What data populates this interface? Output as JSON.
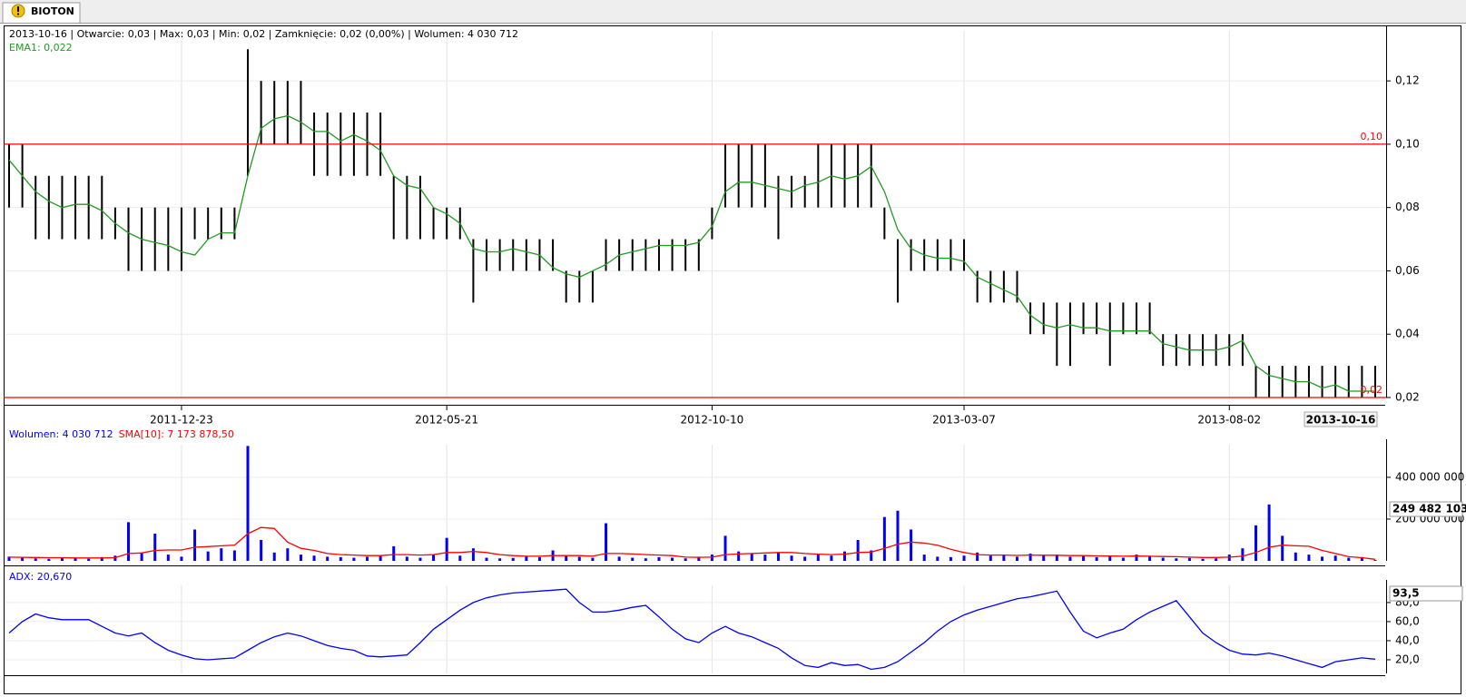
{
  "tab": "BIOTON",
  "chart_data": [
    {
      "type": "ohlc",
      "title": "2013-10-16 | Otwarcie: 0,03 | Max: 0,03 | Min: 0,02 | Zamknięcie: 0,02 (0,00%)  | Wolumen: 4 030 712",
      "categories": [
        null,
        null,
        null,
        null,
        null,
        null,
        null,
        null,
        null,
        null,
        null,
        null,
        null,
        "2011-12-23",
        null,
        null,
        null,
        null,
        null,
        null,
        null,
        null,
        null,
        null,
        null,
        null,
        null,
        null,
        null,
        null,
        null,
        null,
        null,
        "2012-05-21",
        null,
        null,
        null,
        null,
        null,
        null,
        null,
        null,
        null,
        null,
        null,
        null,
        null,
        null,
        null,
        null,
        null,
        null,
        null,
        "2012-10-10",
        null,
        null,
        null,
        null,
        null,
        null,
        null,
        null,
        null,
        null,
        null,
        null,
        null,
        null,
        null,
        null,
        null,
        null,
        "2013-03-07",
        null,
        null,
        null,
        null,
        null,
        null,
        null,
        null,
        null,
        null,
        null,
        null,
        null,
        null,
        null,
        null,
        null,
        null,
        null,
        "2013-08-02",
        null,
        null,
        null,
        null,
        null,
        null,
        null,
        null,
        null,
        null,
        "2013-10-16"
      ],
      "high": [
        0.1,
        0.1,
        0.09,
        0.09,
        0.09,
        0.09,
        0.09,
        0.09,
        0.08,
        0.08,
        0.08,
        0.08,
        0.08,
        0.08,
        0.08,
        0.08,
        0.08,
        0.08,
        0.13,
        0.12,
        0.12,
        0.12,
        0.12,
        0.11,
        0.11,
        0.11,
        0.11,
        0.11,
        0.11,
        0.09,
        0.09,
        0.09,
        0.08,
        0.08,
        0.08,
        0.07,
        0.07,
        0.07,
        0.07,
        0.07,
        0.07,
        0.07,
        0.06,
        0.06,
        0.06,
        0.07,
        0.07,
        0.07,
        0.07,
        0.07,
        0.07,
        0.07,
        0.07,
        0.08,
        0.1,
        0.1,
        0.1,
        0.1,
        0.09,
        0.09,
        0.09,
        0.1,
        0.1,
        0.1,
        0.1,
        0.1,
        0.08,
        0.07,
        0.07,
        0.07,
        0.07,
        0.07,
        0.07,
        0.06,
        0.06,
        0.06,
        0.06,
        0.05,
        0.05,
        0.05,
        0.05,
        0.05,
        0.05,
        0.05,
        0.05,
        0.05,
        0.05,
        0.04,
        0.04,
        0.04,
        0.04,
        0.04,
        0.04,
        0.04,
        0.03,
        0.03,
        0.03,
        0.03,
        0.03,
        0.03,
        0.03,
        0.03,
        0.03,
        0.03
      ],
      "low": [
        0.08,
        0.08,
        0.07,
        0.07,
        0.07,
        0.07,
        0.07,
        0.07,
        0.07,
        0.06,
        0.06,
        0.06,
        0.06,
        0.06,
        0.07,
        0.07,
        0.07,
        0.07,
        0.09,
        0.1,
        0.1,
        0.1,
        0.1,
        0.09,
        0.09,
        0.09,
        0.09,
        0.09,
        0.09,
        0.07,
        0.07,
        0.07,
        0.07,
        0.07,
        0.07,
        0.05,
        0.06,
        0.06,
        0.06,
        0.06,
        0.06,
        0.06,
        0.05,
        0.05,
        0.05,
        0.06,
        0.06,
        0.06,
        0.06,
        0.06,
        0.06,
        0.06,
        0.06,
        0.07,
        0.08,
        0.08,
        0.08,
        0.08,
        0.07,
        0.08,
        0.08,
        0.08,
        0.08,
        0.08,
        0.08,
        0.08,
        0.07,
        0.05,
        0.06,
        0.06,
        0.06,
        0.06,
        0.06,
        0.05,
        0.05,
        0.05,
        0.05,
        0.04,
        0.04,
        0.03,
        0.03,
        0.04,
        0.04,
        0.03,
        0.04,
        0.04,
        0.04,
        0.03,
        0.03,
        0.03,
        0.03,
        0.03,
        0.03,
        0.03,
        0.02,
        0.02,
        0.02,
        0.02,
        0.02,
        0.02,
        0.02,
        0.02,
        0.02,
        0.02
      ],
      "bar_color": "#000000",
      "series": [
        {
          "name": "EMA1: 0,022",
          "type": "line",
          "color": "#1f9c1f",
          "values": [
            0.095,
            0.09,
            0.085,
            0.082,
            0.08,
            0.081,
            0.081,
            0.079,
            0.075,
            0.072,
            0.07,
            0.069,
            0.068,
            0.066,
            0.065,
            0.07,
            0.072,
            0.072,
            0.09,
            0.105,
            0.108,
            0.109,
            0.107,
            0.104,
            0.104,
            0.101,
            0.103,
            0.101,
            0.098,
            0.09,
            0.087,
            0.086,
            0.08,
            0.078,
            0.075,
            0.067,
            0.066,
            0.066,
            0.067,
            0.066,
            0.065,
            0.061,
            0.059,
            0.058,
            0.06,
            0.062,
            0.065,
            0.066,
            0.067,
            0.068,
            0.068,
            0.068,
            0.069,
            0.074,
            0.085,
            0.088,
            0.088,
            0.087,
            0.086,
            0.085,
            0.087,
            0.088,
            0.09,
            0.089,
            0.09,
            0.093,
            0.085,
            0.073,
            0.067,
            0.065,
            0.064,
            0.064,
            0.063,
            0.058,
            0.056,
            0.054,
            0.052,
            0.046,
            0.043,
            0.042,
            0.043,
            0.042,
            0.042,
            0.041,
            0.041,
            0.041,
            0.041,
            0.037,
            0.036,
            0.035,
            0.035,
            0.035,
            0.036,
            0.038,
            0.03,
            0.027,
            0.026,
            0.025,
            0.025,
            0.023,
            0.024,
            0.022,
            0.022,
            0.022
          ]
        }
      ],
      "hlines": [
        {
          "value": 0.1,
          "label": "0,10"
        },
        {
          "value": 0.02,
          "label": "0,02"
        }
      ],
      "hline_color": "#ff0000",
      "ylim": [
        0.02,
        0.1358
      ],
      "yticks": [
        {
          "value": 0.02,
          "label": "0,02"
        },
        {
          "value": 0.04,
          "label": "0,04"
        },
        {
          "value": 0.06,
          "label": "0,06"
        },
        {
          "value": 0.08,
          "label": "0,08"
        },
        {
          "value": 0.1,
          "label": "0,10"
        },
        {
          "value": 0.12,
          "label": "0,12"
        }
      ],
      "grid": true
    },
    {
      "type": "bar",
      "series": [
        {
          "name": "Wolumen: 4 030 712",
          "type": "bar",
          "color": "#0000ff",
          "values": [
            20000000,
            15000000,
            12000000,
            10000000,
            14000000,
            12000000,
            10000000,
            18000000,
            25000000,
            185000000,
            40000000,
            130000000,
            30000000,
            20000000,
            150000000,
            45000000,
            60000000,
            50000000,
            550000000,
            100000000,
            40000000,
            60000000,
            30000000,
            25000000,
            20000000,
            18000000,
            15000000,
            20000000,
            25000000,
            70000000,
            20000000,
            15000000,
            30000000,
            110000000,
            25000000,
            60000000,
            15000000,
            12000000,
            14000000,
            20000000,
            18000000,
            50000000,
            25000000,
            20000000,
            15000000,
            180000000,
            20000000,
            15000000,
            12000000,
            18000000,
            15000000,
            12000000,
            20000000,
            30000000,
            120000000,
            45000000,
            35000000,
            30000000,
            40000000,
            25000000,
            20000000,
            30000000,
            25000000,
            45000000,
            100000000,
            50000000,
            210000000,
            240000000,
            150000000,
            30000000,
            20000000,
            18000000,
            25000000,
            40000000,
            25000000,
            30000000,
            20000000,
            35000000,
            25000000,
            30000000,
            20000000,
            25000000,
            18000000,
            22000000,
            15000000,
            30000000,
            20000000,
            15000000,
            12000000,
            14000000,
            10000000,
            12000000,
            30000000,
            60000000,
            170000000,
            270000000,
            120000000,
            40000000,
            30000000,
            20000000,
            25000000,
            15000000,
            18000000,
            4030712
          ]
        },
        {
          "name": "SMA[10]: 7 173 878,50",
          "type": "line",
          "color": "#ff0000",
          "values": [
            18000000,
            17000000,
            16000000,
            15000000,
            15000000,
            14000000,
            14000000,
            14000000,
            15000000,
            35000000,
            38000000,
            50000000,
            52000000,
            52000000,
            65000000,
            68000000,
            72000000,
            75000000,
            130000000,
            160000000,
            155000000,
            90000000,
            60000000,
            50000000,
            35000000,
            30000000,
            28000000,
            25000000,
            25000000,
            30000000,
            30000000,
            28000000,
            30000000,
            40000000,
            40000000,
            45000000,
            40000000,
            30000000,
            25000000,
            22000000,
            22000000,
            25000000,
            25000000,
            25000000,
            22000000,
            35000000,
            35000000,
            33000000,
            30000000,
            28000000,
            25000000,
            18000000,
            17000000,
            18000000,
            30000000,
            33000000,
            35000000,
            38000000,
            40000000,
            40000000,
            35000000,
            32000000,
            30000000,
            32000000,
            40000000,
            42000000,
            60000000,
            80000000,
            90000000,
            85000000,
            75000000,
            55000000,
            40000000,
            30000000,
            28000000,
            28000000,
            26000000,
            28000000,
            27000000,
            27000000,
            25000000,
            25000000,
            24000000,
            23000000,
            22000000,
            23000000,
            22000000,
            21000000,
            20000000,
            18000000,
            16000000,
            16000000,
            18000000,
            22000000,
            40000000,
            65000000,
            75000000,
            72000000,
            70000000,
            50000000,
            35000000,
            20000000,
            15000000,
            7173878.5
          ]
        }
      ],
      "ylim": [
        0,
        556000000
      ],
      "yticks": [
        {
          "value": 200000000,
          "label": "200 000 000"
        },
        {
          "value": 400000000,
          "label": "400 000 000"
        }
      ],
      "marker_label": "249 482 103",
      "grid": true
    },
    {
      "type": "line",
      "series": [
        {
          "name": "ADX: 20,670",
          "type": "line",
          "color": "#0000ff",
          "values": [
            48,
            60,
            68,
            64,
            62,
            62,
            62,
            55,
            48,
            45,
            48,
            38,
            30,
            25,
            21,
            20,
            21,
            22,
            30,
            38,
            44,
            48,
            45,
            40,
            35,
            32,
            30,
            24,
            23,
            24,
            25,
            38,
            52,
            62,
            72,
            80,
            85,
            88,
            90,
            91,
            92,
            93,
            94,
            80,
            70,
            70,
            72,
            75,
            77,
            65,
            52,
            42,
            38,
            48,
            55,
            48,
            44,
            38,
            32,
            22,
            14,
            12,
            17,
            14,
            15,
            10,
            12,
            18,
            28,
            38,
            50,
            60,
            67,
            72,
            76,
            80,
            84,
            86,
            89,
            92,
            70,
            50,
            43,
            48,
            52,
            62,
            70,
            76,
            82,
            65,
            48,
            38,
            30,
            26,
            25,
            27,
            24,
            20,
            16,
            12,
            18,
            20,
            22,
            20.67
          ]
        }
      ],
      "ylim": [
        5.7,
        98
      ],
      "yticks": [
        {
          "value": 20,
          "label": "20,0"
        },
        {
          "value": 40,
          "label": "40,0"
        },
        {
          "value": 60,
          "label": "60,0"
        },
        {
          "value": 80,
          "label": "80,0"
        }
      ],
      "marker_label": "93,5",
      "grid": true
    }
  ]
}
